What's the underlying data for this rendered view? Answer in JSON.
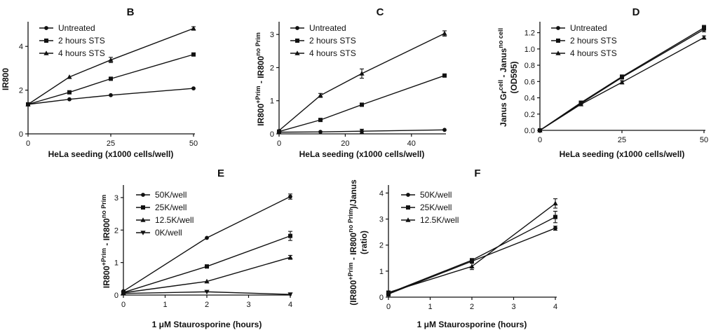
{
  "chart_data": [
    {
      "panel": "B",
      "type": "line",
      "xlabel": "HeLa seeding  (x1000 cells/well)",
      "ylabel": "IR800",
      "xlim": [
        0,
        50
      ],
      "ylim": [
        0,
        5
      ],
      "x_ticks": [
        0,
        25,
        50
      ],
      "y_ticks": [
        0,
        2,
        4
      ],
      "legend_position": "top-left",
      "series": [
        {
          "name": "Untreated",
          "marker": "circle",
          "x": [
            0,
            12.5,
            25,
            50
          ],
          "y": [
            1.35,
            1.58,
            1.77,
            2.08
          ],
          "err": [
            0,
            0,
            0,
            0
          ]
        },
        {
          "name": "2 hours STS",
          "marker": "square",
          "x": [
            0,
            12.5,
            25,
            50
          ],
          "y": [
            1.35,
            1.9,
            2.52,
            3.63
          ],
          "err": [
            0,
            0,
            0,
            0
          ]
        },
        {
          "name": "4 hours STS",
          "marker": "triangle",
          "x": [
            0,
            12.5,
            25,
            50
          ],
          "y": [
            1.35,
            2.6,
            3.38,
            4.82
          ],
          "err": [
            0,
            0,
            0.12,
            0.08
          ]
        }
      ]
    },
    {
      "panel": "C",
      "type": "line",
      "xlabel": "HeLa seeding  (x1000 cells/well)",
      "ylabel": "IR800^+Prim - IR800^no Prim",
      "ylabel_parts": {
        "a": "IR800",
        "b": "+Prim",
        "c": " - IR800",
        "d": "no Prim"
      },
      "xlim": [
        0,
        50
      ],
      "ylim": [
        0,
        3.3
      ],
      "x_ticks": [
        0,
        20,
        40
      ],
      "y_ticks": [
        0,
        1,
        2,
        3
      ],
      "legend_position": "top-left",
      "series": [
        {
          "name": "Untreated",
          "marker": "circle",
          "x": [
            0,
            12.5,
            25,
            50
          ],
          "y": [
            0.05,
            0.06,
            0.08,
            0.12
          ],
          "err": [
            0,
            0,
            0.06,
            0
          ]
        },
        {
          "name": "2 hours STS",
          "marker": "square",
          "x": [
            0,
            12.5,
            25,
            50
          ],
          "y": [
            0.07,
            0.42,
            0.88,
            1.76
          ],
          "err": [
            0,
            0,
            0.05,
            0
          ]
        },
        {
          "name": "4 hours STS",
          "marker": "triangle",
          "x": [
            0,
            12.5,
            25,
            50
          ],
          "y": [
            0.1,
            1.16,
            1.82,
            3.03
          ],
          "err": [
            0,
            0.06,
            0.14,
            0.08
          ]
        }
      ]
    },
    {
      "panel": "D",
      "type": "line",
      "xlabel": "HeLa seeding  (x1000 cells/well)",
      "ylabel": "Janus Gr^cell - Janus^no cell (OD595)",
      "ylabel_parts": {
        "a": "Janus Gr",
        "b": "cell",
        "c": " - Janus",
        "d": "no cell",
        "line2": "(OD595)"
      },
      "xlim": [
        0,
        50
      ],
      "ylim": [
        0,
        1.3
      ],
      "x_ticks": [
        0,
        25,
        50
      ],
      "y_ticks": [
        0.0,
        0.2,
        0.4,
        0.6,
        0.8,
        1.0,
        1.2
      ],
      "y_tick_labels": [
        "0.0",
        "0.2",
        "0.4",
        "0.6",
        "0.8",
        "1.0",
        "1.2"
      ],
      "legend_position": "top-left",
      "series": [
        {
          "name": "Untreated",
          "marker": "circle",
          "x": [
            0,
            12.5,
            25,
            50
          ],
          "y": [
            0.0,
            0.33,
            0.65,
            1.24
          ],
          "err": [
            0,
            0,
            0.02,
            0.03
          ]
        },
        {
          "name": "2 hours STS",
          "marker": "square",
          "x": [
            0,
            12.5,
            25,
            50
          ],
          "y": [
            0.0,
            0.34,
            0.66,
            1.26
          ],
          "err": [
            0,
            0,
            0.02,
            0.03
          ]
        },
        {
          "name": "4 hours STS",
          "marker": "triangle",
          "x": [
            0,
            12.5,
            25,
            50
          ],
          "y": [
            0.0,
            0.32,
            0.59,
            1.14
          ],
          "err": [
            0,
            0,
            0.02,
            0.02
          ]
        }
      ]
    },
    {
      "panel": "E",
      "type": "line",
      "xlabel": "1 μM Staurosporine (hours)",
      "ylabel": "IR800^+Prim - IR800^no Prim",
      "ylabel_parts": {
        "a": "IR800",
        "b": "+Prim",
        "c": " - IR800",
        "d": "no Prim"
      },
      "xlim": [
        0,
        4
      ],
      "ylim": [
        0,
        3.3
      ],
      "x_ticks": [
        0,
        1,
        2,
        3,
        4
      ],
      "y_ticks": [
        0,
        1,
        2,
        3
      ],
      "legend_position": "top-left",
      "series": [
        {
          "name": "50K/well",
          "marker": "circle",
          "x": [
            0,
            2,
            4
          ],
          "y": [
            0.12,
            1.76,
            3.03
          ],
          "err": [
            0,
            0,
            0.08
          ]
        },
        {
          "name": "25K/well",
          "marker": "square",
          "x": [
            0,
            2,
            4
          ],
          "y": [
            0.08,
            0.88,
            1.82
          ],
          "err": [
            0,
            0.05,
            0.14
          ]
        },
        {
          "name": "12.5K/well",
          "marker": "triangle",
          "x": [
            0,
            2,
            4
          ],
          "y": [
            0.07,
            0.42,
            1.16
          ],
          "err": [
            0,
            0,
            0.06
          ]
        },
        {
          "name": "0K/well",
          "marker": "triangle-down",
          "x": [
            0,
            2,
            4
          ],
          "y": [
            0.05,
            0.1,
            0.02
          ],
          "err": [
            0,
            0,
            0
          ]
        }
      ]
    },
    {
      "panel": "F",
      "type": "line",
      "xlabel": "1 μM Staurosporine (hours)",
      "ylabel": "(IR800^+Prim - IR800^no Prim)/Janus (ratio)",
      "ylabel_parts": {
        "a": "(IR800",
        "b": "+Prim",
        "c": " - IR800",
        "d": "no Prim",
        "e": ")/Janus",
        "line2": "(ratio)"
      },
      "xlim": [
        0,
        4
      ],
      "ylim": [
        0,
        4.2
      ],
      "x_ticks": [
        0,
        1,
        2,
        3,
        4
      ],
      "y_ticks": [
        0,
        1,
        2,
        3,
        4
      ],
      "legend_position": "top-left",
      "series": [
        {
          "name": "50K/well",
          "marker": "circle",
          "x": [
            0,
            2,
            4
          ],
          "y": [
            0.12,
            1.38,
            2.65
          ],
          "err": [
            0.08,
            0.06,
            0.08
          ]
        },
        {
          "name": "25K/well",
          "marker": "square",
          "x": [
            0,
            2,
            4
          ],
          "y": [
            0.15,
            1.42,
            3.08
          ],
          "err": [
            0.08,
            0.06,
            0.22
          ]
        },
        {
          "name": "12.5K/well",
          "marker": "triangle",
          "x": [
            0,
            2,
            4
          ],
          "y": [
            0.18,
            1.18,
            3.6
          ],
          "err": [
            0.06,
            0.12,
            0.18
          ]
        }
      ]
    }
  ]
}
